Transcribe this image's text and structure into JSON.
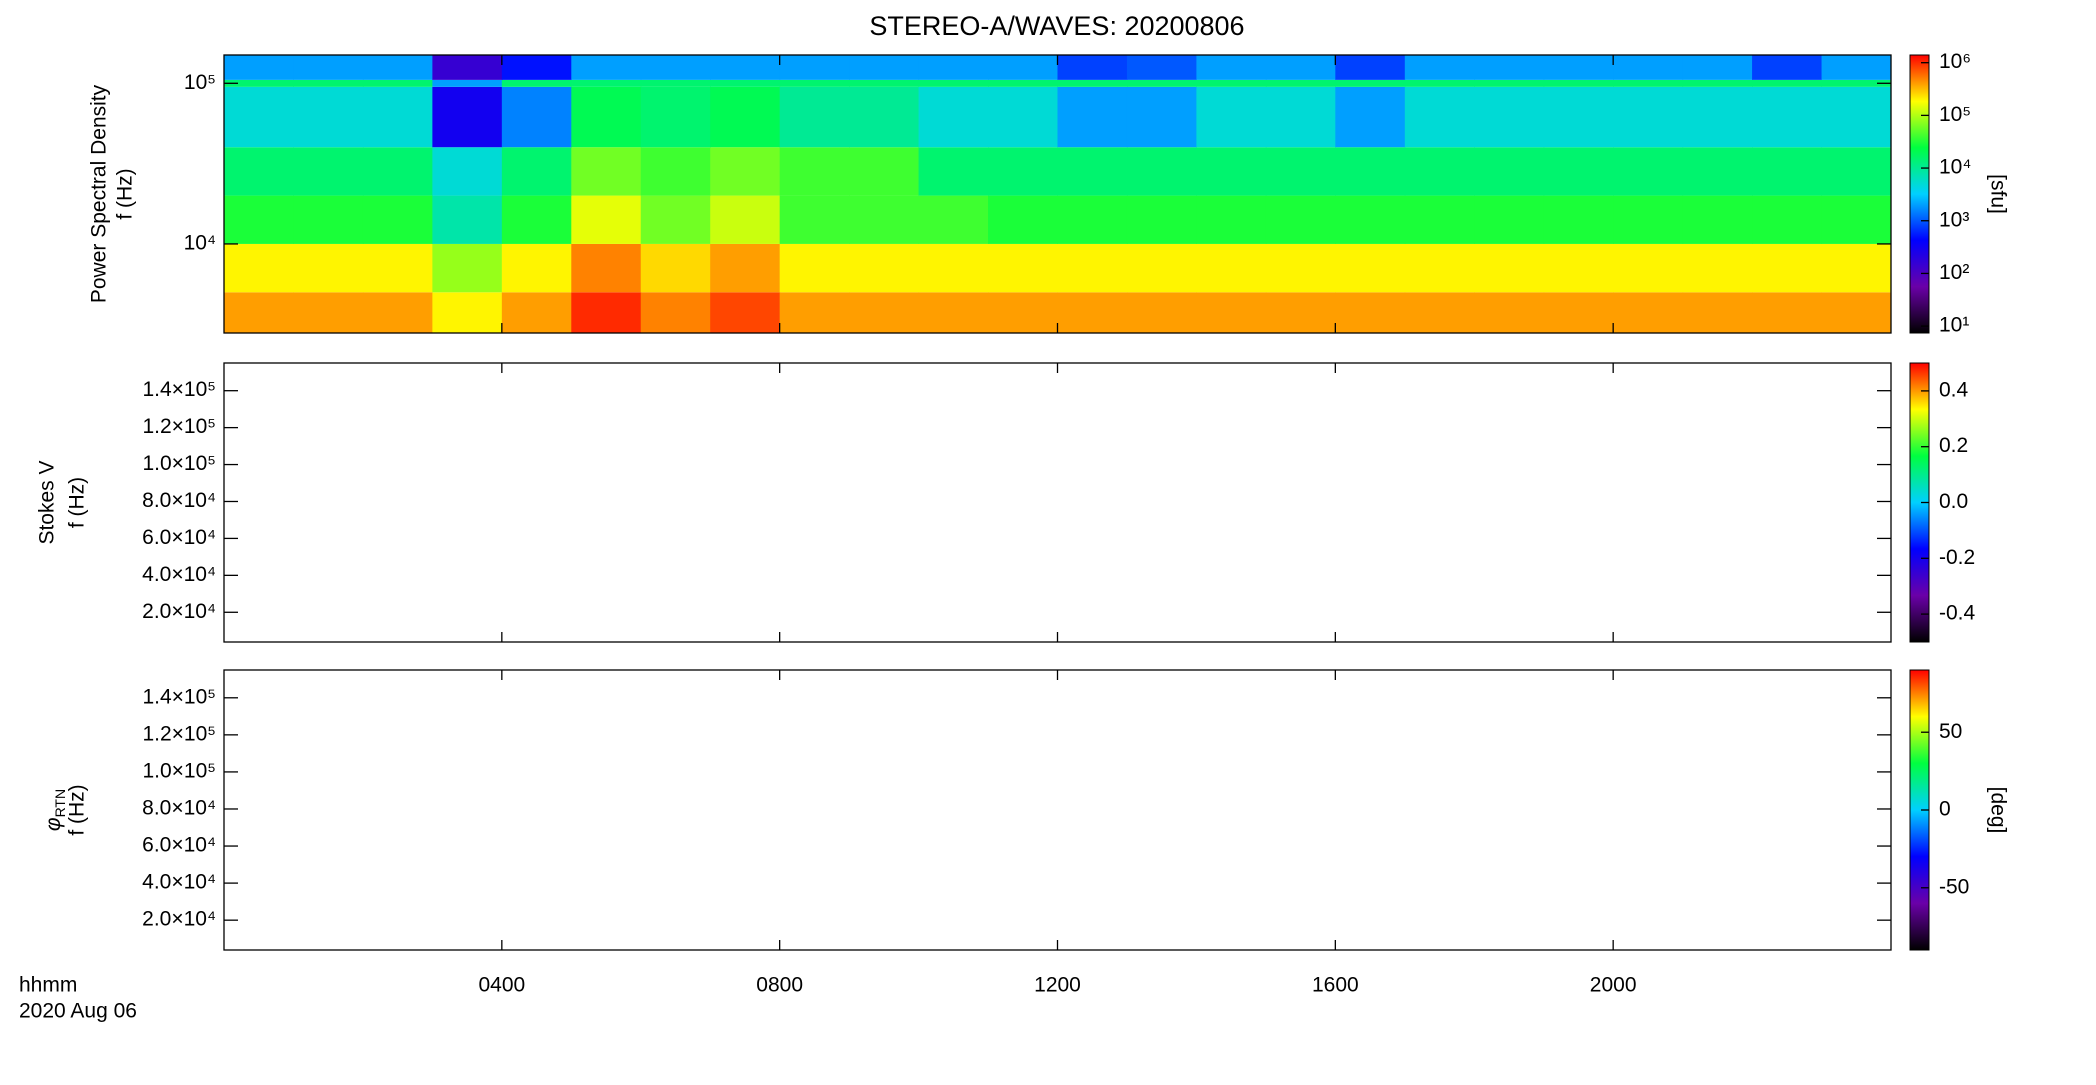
{
  "title": "STEREO-A/WAVES: 20200806",
  "time_label": "hhmm",
  "date_label": "2020 Aug 06",
  "colormap": [
    "#000000",
    "#6a00a8",
    "#0000ff",
    "#00d0ff",
    "#00ff40",
    "#ffff00",
    "#ff0000"
  ],
  "chart_data": [
    {
      "type": "heatmap",
      "ylabel": "Power Spectral Density",
      "ylabel2": "f (Hz)",
      "xlim": [
        0,
        24
      ],
      "xticks": [
        {
          "value": 4,
          "label": "0400"
        },
        {
          "value": 8,
          "label": "0800"
        },
        {
          "value": 12,
          "label": "1200"
        },
        {
          "value": 16,
          "label": "1600"
        },
        {
          "value": 20,
          "label": "2000"
        }
      ],
      "log_y": true,
      "ylim": [
        2790,
        150000
      ],
      "yticks": [
        {
          "value": 10000,
          "label": "10⁴"
        },
        {
          "value": 100000,
          "label": "10⁵"
        }
      ],
      "time_bins": [
        0,
        1,
        2,
        3,
        4,
        5,
        6,
        7,
        8,
        9,
        10,
        11,
        12,
        13,
        14,
        15,
        16,
        17,
        18,
        19,
        20,
        21,
        22,
        23,
        24
      ],
      "freq_bins": [
        2790,
        5000,
        10000,
        20000,
        40000,
        95000,
        105000,
        150000
      ],
      "values": [
        [
          400000,
          400000,
          400000,
          200000,
          400000,
          1000000,
          500000,
          800000,
          400000,
          400000,
          400000,
          400000,
          400000,
          400000,
          400000,
          400000,
          400000,
          400000,
          400000,
          400000,
          400000,
          400000,
          400000,
          400000
        ],
        [
          200000,
          200000,
          200000,
          80000,
          200000,
          500000,
          250000,
          400000,
          200000,
          200000,
          200000,
          200000,
          200000,
          200000,
          200000,
          200000,
          200000,
          200000,
          200000,
          200000,
          200000,
          200000,
          200000,
          200000
        ],
        [
          30000,
          30000,
          30000,
          8000,
          30000,
          150000,
          60000,
          120000,
          40000,
          40000,
          40000,
          30000,
          30000,
          30000,
          30000,
          30000,
          30000,
          30000,
          30000,
          30000,
          30000,
          30000,
          30000,
          30000
        ],
        [
          15000,
          15000,
          15000,
          5000,
          15000,
          60000,
          40000,
          60000,
          40000,
          40000,
          15000,
          15000,
          15000,
          15000,
          15000,
          15000,
          15000,
          15000,
          15000,
          15000,
          15000,
          15000,
          15000,
          15000
        ],
        [
          5000,
          5000,
          5000,
          300,
          1500,
          20000,
          15000,
          20000,
          10000,
          10000,
          5000,
          5000,
          2000,
          2000,
          5000,
          5000,
          2000,
          5000,
          5000,
          5000,
          5000,
          5000,
          5000,
          5000
        ],
        [
          15000,
          15000,
          15000,
          2000,
          15000,
          15000,
          15000,
          15000,
          15000,
          15000,
          15000,
          15000,
          15000,
          15000,
          15000,
          15000,
          15000,
          15000,
          15000,
          15000,
          15000,
          15000,
          15000,
          15000
        ],
        [
          2000,
          2000,
          2000,
          150,
          500,
          2000,
          2000,
          2000,
          2000,
          2000,
          2000,
          2000,
          800,
          1000,
          2000,
          2000,
          800,
          2000,
          2000,
          2000,
          2000,
          2000,
          800,
          2000
        ]
      ],
      "log_c": true,
      "clim": [
        7.4,
        1400000
      ],
      "cticks": [
        {
          "value": 10,
          "label": "10¹"
        },
        {
          "value": 100,
          "label": "10²"
        },
        {
          "value": 1000,
          "label": "10³"
        },
        {
          "value": 10000,
          "label": "10⁴"
        },
        {
          "value": 100000,
          "label": "10⁵"
        },
        {
          "value": 1000000,
          "label": "10⁶"
        }
      ],
      "clabel": "[sfu]"
    },
    {
      "type": "heatmap",
      "ylabel": "Stokes V",
      "ylabel2": "f (Hz)",
      "xlim": [
        0,
        24
      ],
      "xticks": [
        {
          "value": 4,
          "label": "0400"
        },
        {
          "value": 8,
          "label": "0800"
        },
        {
          "value": 12,
          "label": "1200"
        },
        {
          "value": 16,
          "label": "1600"
        },
        {
          "value": 20,
          "label": "2000"
        }
      ],
      "ylim": [
        3900,
        155000
      ],
      "yticks": [
        {
          "value": 20000,
          "label": "2.0×10⁴"
        },
        {
          "value": 40000,
          "label": "4.0×10⁴"
        },
        {
          "value": 60000,
          "label": "6.0×10⁴"
        },
        {
          "value": 80000,
          "label": "8.0×10⁴"
        },
        {
          "value": 100000,
          "label": "1.0×10⁵"
        },
        {
          "value": 120000,
          "label": "1.2×10⁵"
        },
        {
          "value": 140000,
          "label": "1.4×10⁵"
        }
      ],
      "clim": [
        -0.5,
        0.5
      ],
      "cticks": [
        -0.4,
        -0.2,
        {
          "value": 0,
          "label": "0.0"
        },
        0.2,
        0.4
      ]
    },
    {
      "type": "heatmap",
      "ylabel": {
        "symbol": "φ",
        "subscript": "RTN"
      },
      "ylabel2": "f (Hz)",
      "xlim": [
        0,
        24
      ],
      "xticks": [
        {
          "value": 4,
          "label": "0400"
        },
        {
          "value": 8,
          "label": "0800"
        },
        {
          "value": 12,
          "label": "1200"
        },
        {
          "value": 16,
          "label": "1600"
        },
        {
          "value": 20,
          "label": "2000"
        }
      ],
      "ylim": [
        3900,
        155000
      ],
      "yticks": [
        {
          "value": 20000,
          "label": "2.0×10⁴"
        },
        {
          "value": 40000,
          "label": "4.0×10⁴"
        },
        {
          "value": 60000,
          "label": "6.0×10⁴"
        },
        {
          "value": 80000,
          "label": "8.0×10⁴"
        },
        {
          "value": 100000,
          "label": "1.0×10⁵"
        },
        {
          "value": 120000,
          "label": "1.2×10⁵"
        },
        {
          "value": 140000,
          "label": "1.4×10⁵"
        }
      ],
      "clim": [
        -90,
        90
      ],
      "cticks": [
        -50,
        0,
        50
      ],
      "clabel": "[deg]"
    }
  ]
}
